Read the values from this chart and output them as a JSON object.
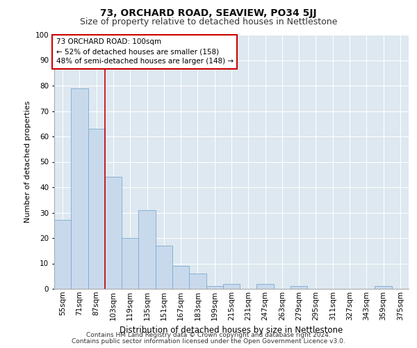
{
  "title1": "73, ORCHARD ROAD, SEAVIEW, PO34 5JJ",
  "title2": "Size of property relative to detached houses in Nettlestone",
  "xlabel": "Distribution of detached houses by size in Nettlestone",
  "ylabel": "Number of detached properties",
  "categories": [
    "55sqm",
    "71sqm",
    "87sqm",
    "103sqm",
    "119sqm",
    "135sqm",
    "151sqm",
    "167sqm",
    "183sqm",
    "199sqm",
    "215sqm",
    "231sqm",
    "247sqm",
    "263sqm",
    "279sqm",
    "295sqm",
    "311sqm",
    "327sqm",
    "343sqm",
    "359sqm",
    "375sqm"
  ],
  "values": [
    27,
    79,
    63,
    44,
    20,
    31,
    17,
    9,
    6,
    1,
    2,
    0,
    2,
    0,
    1,
    0,
    0,
    0,
    0,
    1,
    0
  ],
  "bar_color": "#c9d9ec",
  "bar_edge_color": "#7aaad0",
  "vline_color": "#cc0000",
  "annotation_text": "73 ORCHARD ROAD: 100sqm\n← 52% of detached houses are smaller (158)\n48% of semi-detached houses are larger (148) →",
  "annotation_box_facecolor": "#ffffff",
  "annotation_box_edgecolor": "#cc0000",
  "ylim": [
    0,
    100
  ],
  "yticks": [
    0,
    10,
    20,
    30,
    40,
    50,
    60,
    70,
    80,
    90,
    100
  ],
  "bg_color": "#dde8f0",
  "fig_bg_color": "#ffffff",
  "footer1": "Contains HM Land Registry data © Crown copyright and database right 2024.",
  "footer2": "Contains public sector information licensed under the Open Government Licence v3.0.",
  "title1_fontsize": 10,
  "title2_fontsize": 9,
  "xlabel_fontsize": 8.5,
  "ylabel_fontsize": 8,
  "tick_fontsize": 7.5,
  "annotation_fontsize": 7.5,
  "footer_fontsize": 6.5,
  "vline_index": 2.5
}
